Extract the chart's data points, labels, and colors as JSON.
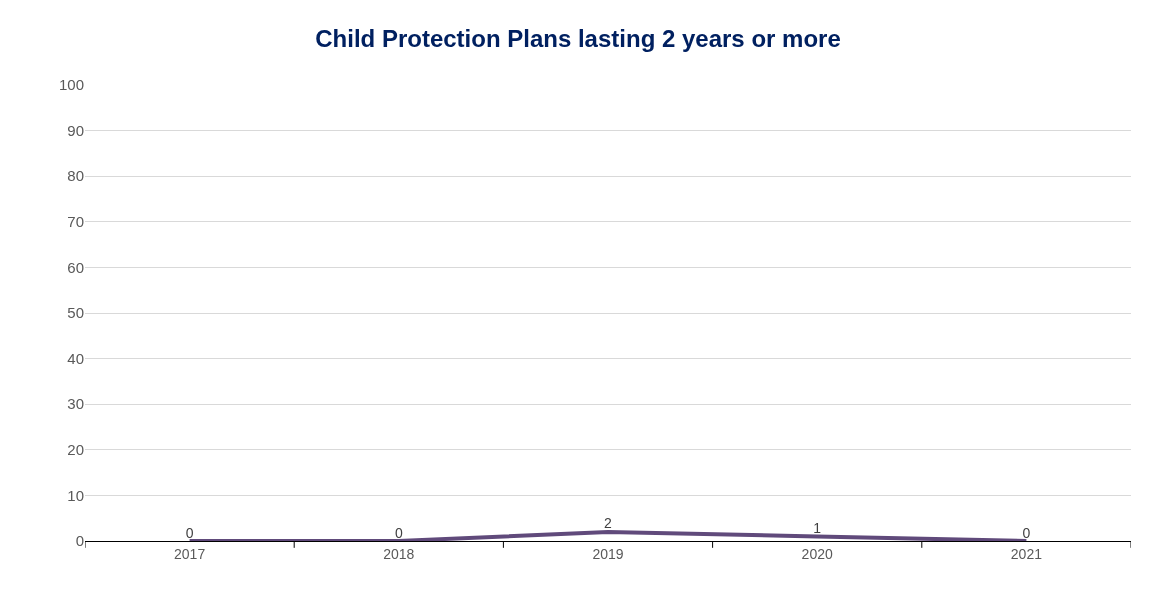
{
  "chart_data": {
    "type": "line",
    "title": "Child Protection Plans lasting 2 years or more",
    "categories": [
      "2017",
      "2018",
      "2019",
      "2020",
      "2021"
    ],
    "series": [
      {
        "color": "#604a7b",
        "values": [
          0,
          0,
          2,
          1,
          0
        ]
      }
    ],
    "ylim": [
      0,
      100
    ],
    "yticks": [
      0,
      10,
      20,
      30,
      40,
      50,
      60,
      70,
      80,
      90,
      100
    ],
    "grid": "y",
    "data_labels": true,
    "marker": "none",
    "line_style": "solid"
  }
}
